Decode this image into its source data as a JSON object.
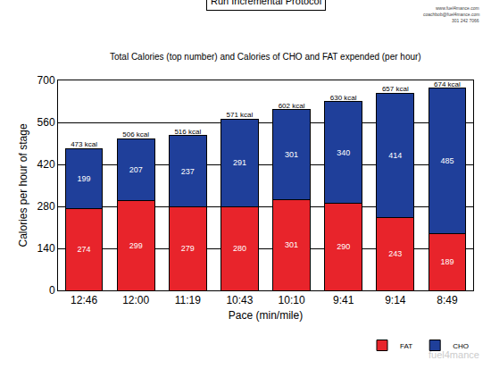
{
  "chart_data": {
    "type": "bar",
    "title": "Run Incremental Protocol",
    "subtitle": "Total Calories (top number) and Calories of CHO and FAT expended (per hour)",
    "x_label": "Pace (min/mile)",
    "y_label": "Calories per hour of stage",
    "annotations": [
      "Fuel4mance",
      "www.fuel4mance.com",
      "coachbob@fuel4mance.com",
      "301 242 7066",
      "fuel4mance"
    ],
    "categories": [
      "12:46",
      "12:00",
      "11:19",
      "10:43",
      "10:10",
      "9:41",
      "9:14",
      "8:49"
    ],
    "series": [
      {
        "name": "FAT",
        "color": "#e8242b",
        "values": [
          274,
          299,
          279,
          280,
          301,
          290,
          243,
          189
        ]
      },
      {
        "name": "CHO",
        "color": "#1f3f9a",
        "values": [
          199,
          207,
          237,
          291,
          301,
          340,
          414,
          485
        ]
      }
    ],
    "totals": [
      473,
      506,
      516,
      571,
      602,
      630,
      657,
      674
    ],
    "total_labels": [
      "473 kcal",
      "506 kcal",
      "516 kcal",
      "571 kcal",
      "602 kcal",
      "630 kcal",
      "657 kcal",
      "674 kcal"
    ],
    "ylim": [
      0,
      700
    ],
    "yticks": [
      0,
      140,
      280,
      420,
      560,
      700
    ],
    "grid": true,
    "stacked": true,
    "data_labels": true,
    "legend": "bottom right"
  }
}
